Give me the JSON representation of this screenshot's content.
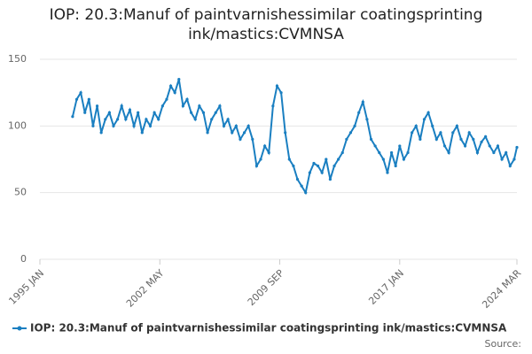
{
  "chart_data": {
    "type": "line",
    "title": "IOP: 20.3:Manuf of paintvarnishessimilar coatingsprinting ink/mastics:CVMNSA",
    "source": "Source:",
    "xlim": [
      "1995 JAN",
      "2024 MAR"
    ],
    "xticks": [
      "1995 JAN",
      "2002 MAY",
      "2009 SEP",
      "2017 JAN",
      "2024 MAR"
    ],
    "ylim": [
      0,
      150
    ],
    "yticks": [
      0,
      50,
      100,
      150
    ],
    "grid": true,
    "series": [
      {
        "name": "IOP: 20.3:Manuf of paintvarnishessimilar coatingsprinting ink/mastics:CVMNSA",
        "color": "#1a7fc1",
        "x": [
          "1997 JAN",
          "1997 APR",
          "1997 JUL",
          "1997 OCT",
          "1998 JAN",
          "1998 APR",
          "1998 JUL",
          "1998 OCT",
          "1999 JAN",
          "1999 APR",
          "1999 JUL",
          "1999 OCT",
          "2000 JAN",
          "2000 APR",
          "2000 JUL",
          "2000 OCT",
          "2001 JAN",
          "2001 APR",
          "2001 JUL",
          "2001 OCT",
          "2002 JAN",
          "2002 APR",
          "2002 JUL",
          "2002 OCT",
          "2003 JAN",
          "2003 APR",
          "2003 JUL",
          "2003 OCT",
          "2004 JAN",
          "2004 APR",
          "2004 JUL",
          "2004 OCT",
          "2005 JAN",
          "2005 APR",
          "2005 JUL",
          "2005 OCT",
          "2006 JAN",
          "2006 APR",
          "2006 JUL",
          "2006 OCT",
          "2007 JAN",
          "2007 APR",
          "2007 JUL",
          "2007 OCT",
          "2008 JAN",
          "2008 APR",
          "2008 JUL",
          "2008 OCT",
          "2009 JAN",
          "2009 APR",
          "2009 JUL",
          "2009 OCT",
          "2010 JAN",
          "2010 APR",
          "2010 JUL",
          "2010 OCT",
          "2011 JAN",
          "2011 APR",
          "2011 JUL",
          "2011 OCT",
          "2012 JAN",
          "2012 APR",
          "2012 JUL",
          "2012 OCT",
          "2013 JAN",
          "2013 APR",
          "2013 JUL",
          "2013 OCT",
          "2014 JAN",
          "2014 APR",
          "2014 JUL",
          "2014 OCT",
          "2015 JAN",
          "2015 APR",
          "2015 JUL",
          "2015 OCT",
          "2016 JAN",
          "2016 APR",
          "2016 JUL",
          "2016 OCT",
          "2017 JAN",
          "2017 APR",
          "2017 JUL",
          "2017 OCT",
          "2018 JAN",
          "2018 APR",
          "2018 JUL",
          "2018 OCT",
          "2019 JAN",
          "2019 APR",
          "2019 JUL",
          "2019 OCT",
          "2020 JAN",
          "2020 APR",
          "2020 JUL",
          "2020 OCT",
          "2021 JAN",
          "2021 APR",
          "2021 JUL",
          "2021 OCT",
          "2022 JAN",
          "2022 APR",
          "2022 JUL",
          "2022 OCT",
          "2023 JAN",
          "2023 APR",
          "2023 JUL",
          "2023 OCT",
          "2024 JAN",
          "2024 MAR"
        ],
        "values": [
          107,
          120,
          125,
          110,
          120,
          100,
          115,
          95,
          105,
          110,
          100,
          105,
          115,
          105,
          112,
          100,
          110,
          95,
          105,
          100,
          110,
          105,
          115,
          120,
          130,
          125,
          135,
          115,
          120,
          110,
          105,
          115,
          110,
          95,
          105,
          110,
          115,
          100,
          105,
          95,
          100,
          90,
          95,
          100,
          90,
          70,
          75,
          85,
          80,
          115,
          130,
          125,
          95,
          75,
          70,
          60,
          55,
          50,
          65,
          72,
          70,
          65,
          75,
          60,
          70,
          75,
          80,
          90,
          95,
          100,
          110,
          118,
          105,
          90,
          85,
          80,
          75,
          65,
          80,
          70,
          85,
          75,
          80,
          95,
          100,
          90,
          105,
          110,
          100,
          90,
          95,
          85,
          80,
          95,
          100,
          90,
          85,
          95,
          90,
          80,
          88,
          92,
          85,
          80,
          85,
          75,
          80,
          70,
          75,
          84
        ]
      }
    ]
  }
}
